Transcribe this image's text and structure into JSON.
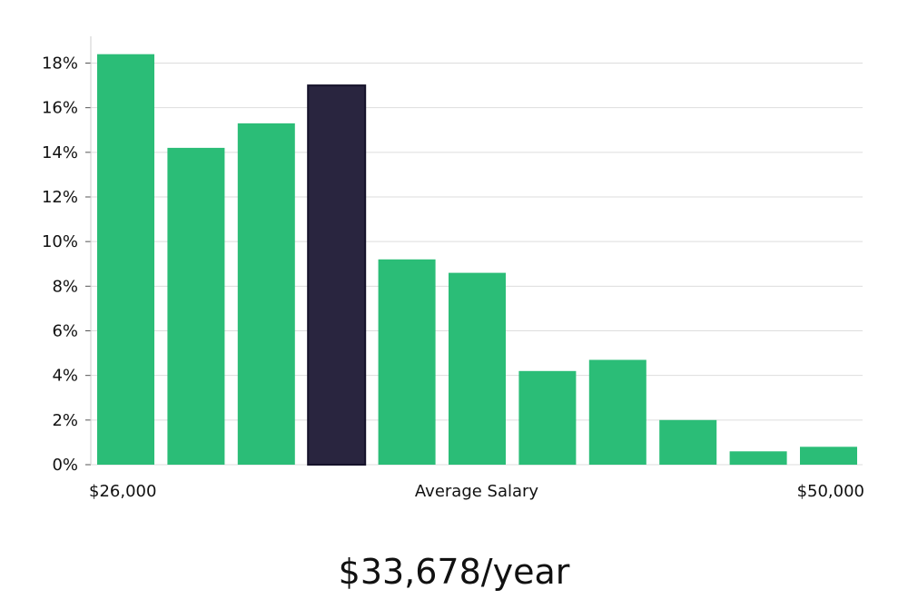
{
  "chart_data": {
    "type": "bar",
    "title": "",
    "xlabel": "Average Salary",
    "ylabel": "",
    "x_range_labels": {
      "start": "$26,000",
      "end": "$50,000"
    },
    "ylim": [
      0,
      19.2
    ],
    "y_ticks": [
      0,
      2,
      4,
      6,
      8,
      10,
      12,
      14,
      16,
      18
    ],
    "y_tick_format": "%",
    "grid": true,
    "values": [
      18.4,
      14.2,
      15.3,
      17.0,
      9.2,
      8.6,
      4.2,
      4.7,
      2.0,
      0.6,
      0.8
    ],
    "highlight_index": 3,
    "colors": {
      "bar": "#2bbd77",
      "highlight": "#29253f",
      "highlight_border": "#15122a",
      "grid": "#dddddd",
      "axis": "#cccccc"
    }
  },
  "headline": {
    "salary_text": "$33,678/year"
  }
}
